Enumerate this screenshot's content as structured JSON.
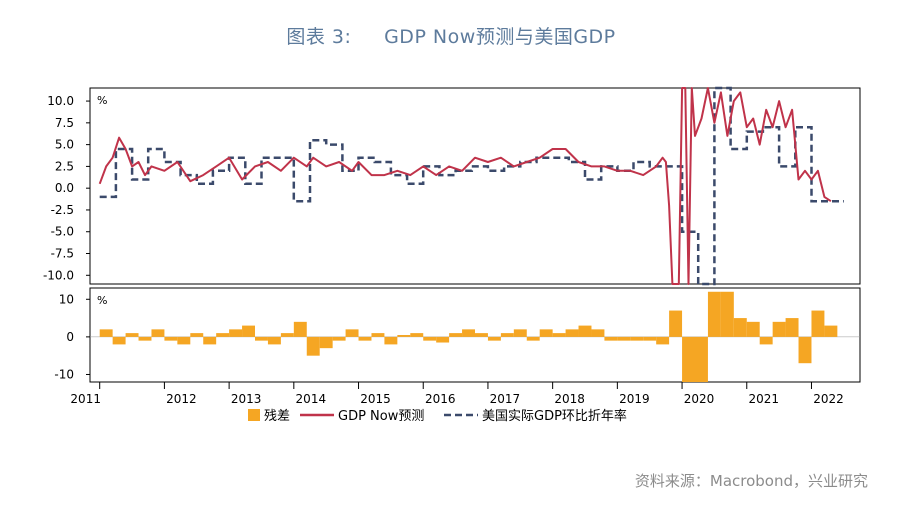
{
  "title": "图表 3:     GDP Now预测与美国GDP",
  "source": "资料来源：Macrobond，兴业研究",
  "colors": {
    "residual": "#f5a623",
    "gdpnow": "#c0334a",
    "actual": "#3b4a6b",
    "title": "#5d7b9c"
  },
  "chart_data": {
    "type": "line",
    "top_panel": {
      "unit": "%",
      "ylim": [
        -11,
        11.5
      ],
      "yticks": [
        "10.0",
        "7.5",
        "5.0",
        "2.5",
        "0.0",
        "-2.5",
        "-5.0",
        "-7.5",
        "-10.0"
      ],
      "series": [
        {
          "name": "GDP Now预测",
          "style": "solid",
          "x": [
            2011.0,
            2011.1,
            2011.2,
            2011.3,
            2011.4,
            2011.5,
            2011.6,
            2011.7,
            2011.8,
            2012.0,
            2012.2,
            2012.4,
            2012.6,
            2012.8,
            2013.0,
            2013.2,
            2013.4,
            2013.6,
            2013.8,
            2014.0,
            2014.2,
            2014.3,
            2014.5,
            2014.7,
            2014.9,
            2015.0,
            2015.2,
            2015.4,
            2015.6,
            2015.8,
            2016.0,
            2016.2,
            2016.4,
            2016.6,
            2016.8,
            2017.0,
            2017.2,
            2017.4,
            2017.6,
            2017.8,
            2018.0,
            2018.2,
            2018.4,
            2018.6,
            2018.8,
            2019.0,
            2019.2,
            2019.4,
            2019.6,
            2019.7,
            2019.75,
            2019.8,
            2019.85,
            2019.95,
            2020.0,
            2020.05,
            2020.1,
            2020.15,
            2020.2,
            2020.3,
            2020.4,
            2020.5,
            2020.6,
            2020.7,
            2020.8,
            2020.9,
            2021.0,
            2021.1,
            2021.2,
            2021.3,
            2021.4,
            2021.5,
            2021.6,
            2021.7,
            2021.8,
            2021.9,
            2022.0,
            2022.1,
            2022.2,
            2022.3
          ],
          "values": [
            0.5,
            2.5,
            3.5,
            5.8,
            4.5,
            2.5,
            3.0,
            1.5,
            2.5,
            2.0,
            3.0,
            0.8,
            1.5,
            2.5,
            3.5,
            1.0,
            2.5,
            3.0,
            2.0,
            3.5,
            2.5,
            3.5,
            2.5,
            3.0,
            2.0,
            3.0,
            1.5,
            1.5,
            2.0,
            1.5,
            2.5,
            1.5,
            2.5,
            2.0,
            3.5,
            3.0,
            3.5,
            2.5,
            3.0,
            3.5,
            4.5,
            4.5,
            3.0,
            2.5,
            2.5,
            2.0,
            2.0,
            1.5,
            2.5,
            3.5,
            3.0,
            -2.0,
            -11,
            -11,
            12,
            12,
            -11,
            12,
            6.0,
            8.0,
            11.5,
            7.5,
            11.0,
            6.0,
            10.0,
            11.0,
            7.0,
            8.0,
            5.0,
            9.0,
            7.0,
            10.0,
            7.0,
            9.0,
            1.0,
            2.0,
            1.0,
            2.0,
            -1.0,
            -1.5
          ]
        },
        {
          "name": "美国实际GDP环比折年率",
          "style": "dashed",
          "x": [
            2011.0,
            2011.25,
            2011.5,
            2011.75,
            2012.0,
            2012.25,
            2012.5,
            2012.75,
            2013.0,
            2013.25,
            2013.5,
            2013.75,
            2014.0,
            2014.25,
            2014.5,
            2014.75,
            2015.0,
            2015.25,
            2015.5,
            2015.75,
            2016.0,
            2016.25,
            2016.5,
            2016.75,
            2017.0,
            2017.25,
            2017.5,
            2017.75,
            2018.0,
            2018.25,
            2018.5,
            2018.75,
            2019.0,
            2019.25,
            2019.5,
            2019.75,
            2020.0,
            2020.25,
            2020.5,
            2020.75,
            2021.0,
            2021.25,
            2021.5,
            2021.75,
            2022.0,
            2022.25
          ],
          "values": [
            -1.0,
            4.5,
            1.0,
            4.5,
            3.0,
            1.5,
            0.5,
            2.0,
            3.5,
            0.5,
            3.5,
            3.5,
            -1.5,
            5.5,
            5.0,
            2.0,
            3.5,
            3.0,
            1.5,
            0.5,
            2.5,
            1.5,
            2.0,
            2.5,
            2.0,
            2.5,
            3.0,
            3.5,
            3.5,
            3.0,
            1.0,
            2.5,
            2.0,
            3.0,
            2.5,
            2.5,
            -5.0,
            -11,
            12,
            4.5,
            6.5,
            7.0,
            2.5,
            7.0,
            -1.5,
            -1.5
          ]
        }
      ]
    },
    "bottom_panel": {
      "unit": "%",
      "ylim": [
        -12,
        13
      ],
      "yticks": [
        "10",
        "0",
        "-10"
      ],
      "series": [
        {
          "name": "残差",
          "type": "bar",
          "x": [
            2011.0,
            2011.2,
            2011.4,
            2011.6,
            2011.8,
            2012.0,
            2012.2,
            2012.4,
            2012.6,
            2012.8,
            2013.0,
            2013.2,
            2013.4,
            2013.6,
            2013.8,
            2014.0,
            2014.2,
            2014.4,
            2014.6,
            2014.8,
            2015.0,
            2015.2,
            2015.4,
            2015.6,
            2015.8,
            2016.0,
            2016.2,
            2016.4,
            2016.6,
            2016.8,
            2017.0,
            2017.2,
            2017.4,
            2017.6,
            2017.8,
            2018.0,
            2018.2,
            2018.4,
            2018.6,
            2018.8,
            2019.0,
            2019.2,
            2019.4,
            2019.6,
            2019.8,
            2020.0,
            2020.2,
            2020.4,
            2020.6,
            2020.8,
            2021.0,
            2021.2,
            2021.4,
            2021.6,
            2021.8,
            2022.0,
            2022.2
          ],
          "values": [
            2,
            -2,
            1,
            -1,
            2,
            -1,
            -2,
            1,
            -2,
            1,
            2,
            3,
            -1,
            -2,
            1,
            4,
            -5,
            -3,
            -1,
            2,
            -1,
            1,
            -2,
            0.5,
            1,
            -1,
            -1.5,
            1,
            2,
            1,
            -1,
            1,
            2,
            -1,
            2,
            1,
            2,
            3,
            2,
            -1,
            -1,
            -1,
            -1,
            -2,
            7,
            -12,
            -12,
            12,
            12,
            5,
            4,
            -2,
            4,
            5,
            -7,
            7,
            3
          ]
        }
      ]
    },
    "x_ticks": [
      "2011",
      "2012",
      "2013",
      "2014",
      "2015",
      "2016",
      "2017",
      "2018",
      "2019",
      "2020",
      "2021",
      "2022"
    ],
    "legend": [
      "残差",
      "GDP Now预测",
      "美国实际GDP环比折年率"
    ],
    "legend_position": "bottom"
  }
}
